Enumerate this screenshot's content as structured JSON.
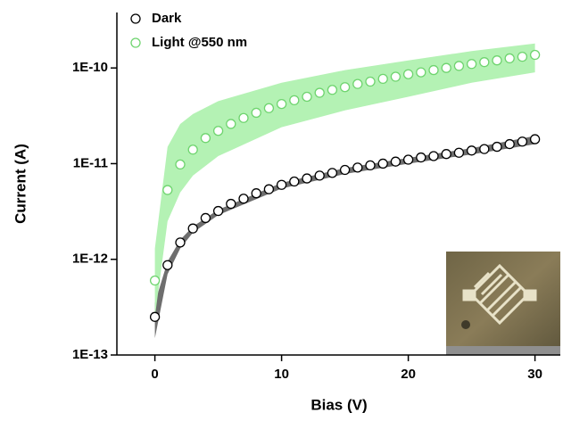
{
  "chart_data": {
    "type": "scatter",
    "x_label": "Bias (V)",
    "y_label": "Current (A)",
    "log_y": true,
    "xlim": [
      -3,
      32
    ],
    "xticks": [
      0,
      10,
      20,
      30
    ],
    "ylim": [
      1e-13,
      3.8e-10
    ],
    "yticks": [
      {
        "value": 1e-13,
        "label": "1E-13"
      },
      {
        "value": 1e-12,
        "label": "1E-12"
      },
      {
        "value": 1e-11,
        "label": "1E-11"
      },
      {
        "value": 1e-10,
        "label": "1E-10"
      }
    ],
    "legend": "top-left",
    "x": [
      0,
      1,
      2,
      3,
      4,
      5,
      6,
      7,
      8,
      9,
      10,
      11,
      12,
      13,
      14,
      15,
      16,
      17,
      18,
      19,
      20,
      21,
      22,
      23,
      24,
      25,
      26,
      27,
      28,
      29,
      30
    ],
    "band_x": [
      0,
      1,
      2,
      3,
      5,
      10,
      15,
      20,
      25,
      30
    ],
    "series": [
      {
        "name": "Dark",
        "color": "#000000",
        "band_color": "#6e6e6e",
        "values": [
          2.5e-13,
          8.7e-13,
          1.5e-12,
          2.1e-12,
          2.7e-12,
          3.2e-12,
          3.8e-12,
          4.3e-12,
          4.9e-12,
          5.4e-12,
          6e-12,
          6.5e-12,
          7e-12,
          7.5e-12,
          8e-12,
          8.6e-12,
          9.1e-12,
          9.6e-12,
          1e-11,
          1.05e-11,
          1.1e-11,
          1.16e-11,
          1.2e-11,
          1.26e-11,
          1.3e-11,
          1.37e-11,
          1.42e-11,
          1.5e-11,
          1.6e-11,
          1.7e-11,
          1.8e-11
        ],
        "band_upper": [
          3.5e-13,
          9.5e-13,
          1.6e-12,
          2.2e-12,
          3.3e-12,
          6.3e-12,
          9e-12,
          1.15e-11,
          1.45e-11,
          1.95e-11
        ],
        "band_lower": [
          1.5e-13,
          7e-13,
          1.3e-12,
          1.9e-12,
          2.9e-12,
          5.5e-12,
          7.8e-12,
          1e-11,
          1.25e-11,
          1.6e-11
        ]
      },
      {
        "name": "Light @550 nm",
        "color": "#6fd46f",
        "band_color": "#b4f2b4",
        "values": [
          6e-13,
          5.3e-12,
          9.8e-12,
          1.4e-11,
          1.85e-11,
          2.2e-11,
          2.6e-11,
          3e-11,
          3.4e-11,
          3.8e-11,
          4.2e-11,
          4.6e-11,
          5e-11,
          5.5e-11,
          5.9e-11,
          6.3e-11,
          6.8e-11,
          7.2e-11,
          7.7e-11,
          8.1e-11,
          8.6e-11,
          9e-11,
          9.5e-11,
          1e-10,
          1.05e-10,
          1.1e-10,
          1.15e-10,
          1.2e-10,
          1.26e-10,
          1.31e-10,
          1.37e-10
        ],
        "band_upper": [
          1.3e-12,
          1.5e-11,
          2.6e-11,
          3.3e-11,
          4.5e-11,
          7e-11,
          9.5e-11,
          1.2e-10,
          1.5e-10,
          1.8e-10
        ],
        "band_lower": [
          2.5e-13,
          2.5e-12,
          5e-12,
          7.5e-12,
          1.2e-11,
          2.4e-11,
          3.6e-11,
          5e-11,
          7e-11,
          9e-11
        ]
      }
    ]
  }
}
